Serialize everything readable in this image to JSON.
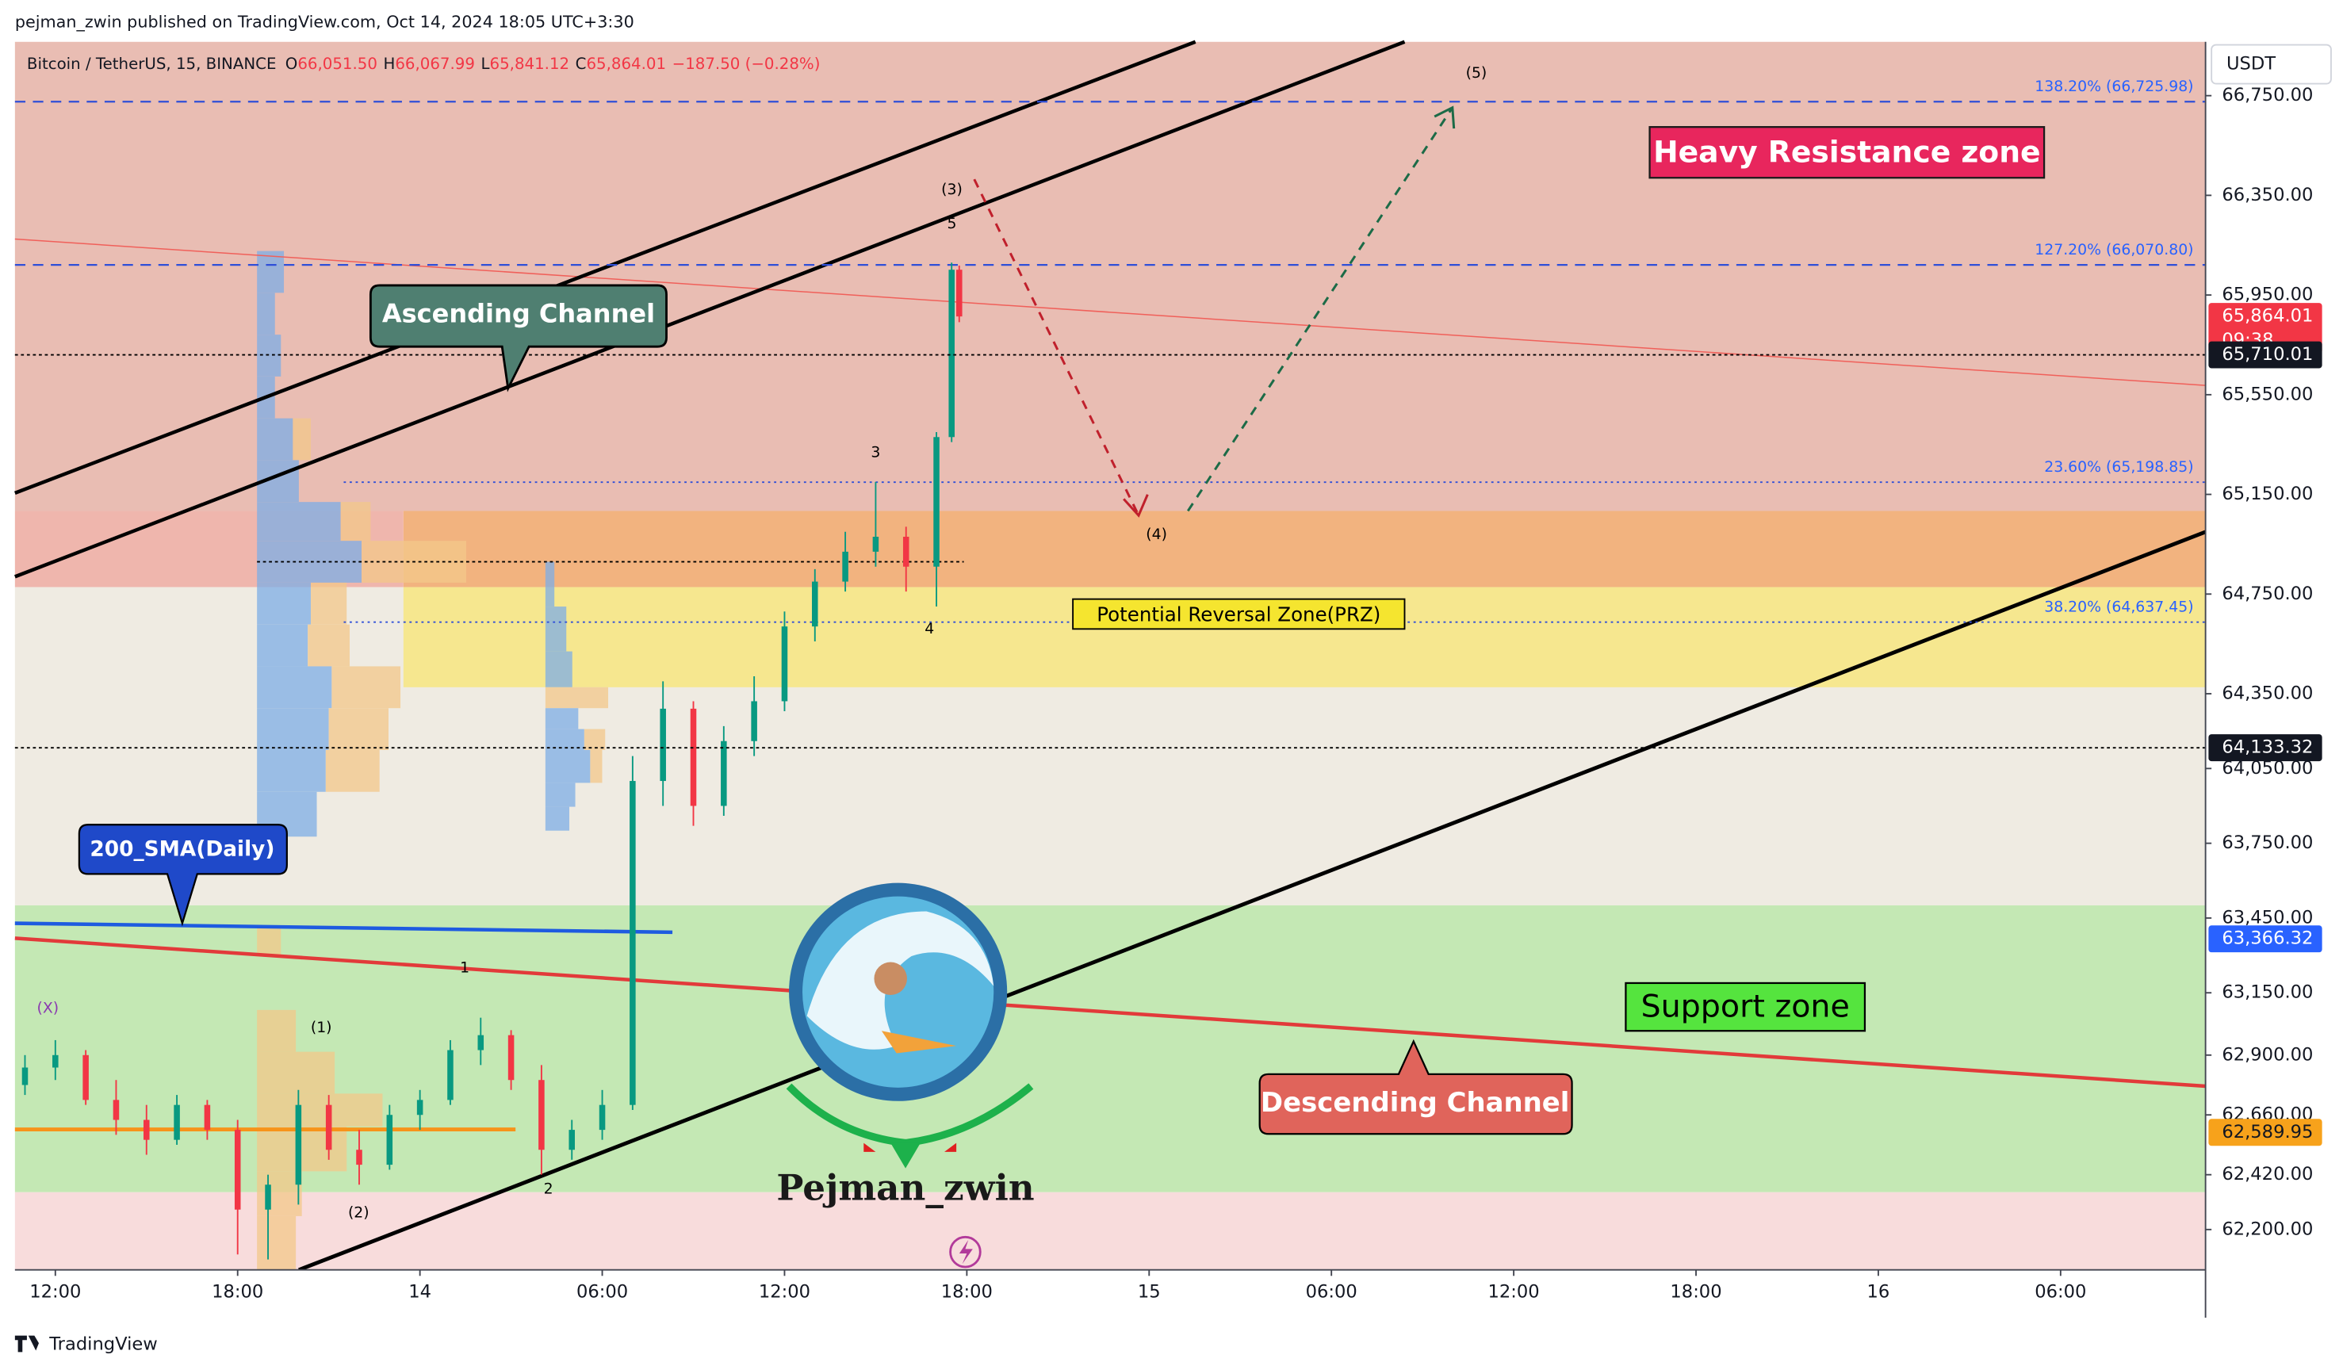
{
  "header": {
    "publisher": "pejman_zwin published on TradingView.com, Oct 14, 2024 18:05 UTC+3:30",
    "footer": "TradingView"
  },
  "chart_data": {
    "type": "candlestick",
    "title": "Bitcoin / TetherUS, 15, BINANCE",
    "ohlc_labels": [
      {
        "key": "O",
        "text": "66,051.50"
      },
      {
        "key": "H",
        "text": "66,067.99"
      },
      {
        "key": "L",
        "text": "65,841.12"
      },
      {
        "key": "C",
        "text": "65,864.01"
      }
    ],
    "change": "−187.50 (−0.28%)",
    "currency": "USDT",
    "x": [
      -1,
      0,
      1,
      2,
      3,
      4,
      5,
      6,
      7,
      8,
      9,
      10,
      11,
      12,
      13,
      14,
      15,
      16,
      17,
      18,
      19,
      20,
      21,
      22,
      23,
      24,
      25,
      26,
      27,
      28,
      29,
      29.5,
      29.75
    ],
    "open": [
      62780,
      62850,
      62900,
      62720,
      62640,
      62560,
      62700,
      62600,
      62280,
      62380,
      62700,
      62520,
      62460,
      62660,
      62720,
      62920,
      62980,
      62800,
      62520,
      62600,
      62700,
      64000,
      64290,
      63900,
      64160,
      64320,
      64620,
      64800,
      64920,
      64980,
      64860,
      65380,
      66051.5
    ],
    "high": [
      62900,
      62960,
      62920,
      62800,
      62700,
      62740,
      62720,
      62640,
      62420,
      62760,
      62740,
      62600,
      62700,
      62760,
      62960,
      63050,
      63000,
      62860,
      62640,
      62760,
      64100,
      64400,
      64320,
      64220,
      64420,
      64680,
      64850,
      65000,
      65200,
      65020,
      65400,
      66080,
      66067.99
    ],
    "low": [
      62740,
      62800,
      62700,
      62580,
      62500,
      62540,
      62560,
      62100,
      62080,
      62300,
      62480,
      62380,
      62440,
      62600,
      62700,
      62860,
      62760,
      62420,
      62480,
      62560,
      62680,
      63900,
      63820,
      63860,
      64100,
      64280,
      64560,
      64760,
      64860,
      64760,
      64700,
      65360,
      65841.12
    ],
    "close": [
      62850,
      62900,
      62720,
      62640,
      62560,
      62700,
      62600,
      62280,
      62380,
      62700,
      62520,
      62460,
      62660,
      62720,
      62920,
      62980,
      62800,
      62520,
      62600,
      62700,
      64000,
      64290,
      63900,
      64160,
      64320,
      64620,
      64800,
      64920,
      64980,
      64860,
      65380,
      66051.5,
      65864.01
    ],
    "up_color": "#089981",
    "down_color": "#f23645",
    "xlim": [
      -1.33,
      70.77
    ],
    "xticks": [
      {
        "value": 0,
        "label": "12:00"
      },
      {
        "value": 6,
        "label": "18:00"
      },
      {
        "value": 12,
        "label": "14"
      },
      {
        "value": 18,
        "label": "06:00"
      },
      {
        "value": 24,
        "label": "12:00"
      },
      {
        "value": 30,
        "label": "18:00"
      },
      {
        "value": 36,
        "label": "15"
      },
      {
        "value": 42,
        "label": "06:00"
      },
      {
        "value": 48,
        "label": "12:00"
      },
      {
        "value": 54,
        "label": "18:00"
      },
      {
        "value": 60,
        "label": "16"
      },
      {
        "value": 66,
        "label": "06:00"
      }
    ],
    "ylim": [
      62038,
      66966
    ],
    "yticks": [
      {
        "value": 66750,
        "label": "66,750.00"
      },
      {
        "value": 66350,
        "label": "66,350.00"
      },
      {
        "value": 65950,
        "label": "65,950.00"
      },
      {
        "value": 65550,
        "label": "65,550.00"
      },
      {
        "value": 65150,
        "label": "65,150.00"
      },
      {
        "value": 64750,
        "label": "64,750.00"
      },
      {
        "value": 64350,
        "label": "64,350.00"
      },
      {
        "value": 64050,
        "label": "64,050.00"
      },
      {
        "value": 63750,
        "label": "63,750.00"
      },
      {
        "value": 63450,
        "label": "63,450.00"
      },
      {
        "value": 63150,
        "label": "63,150.00"
      },
      {
        "value": 62900,
        "label": "62,900.00"
      },
      {
        "value": 62660,
        "label": "62,660.00"
      },
      {
        "value": 62420,
        "label": "62,420.00"
      },
      {
        "value": 62200,
        "label": "62,200.00"
      }
    ],
    "grid": false,
    "fib_levels": [
      {
        "value": 66725.98,
        "label": "138.20% (66,725.98)",
        "style": "dashed"
      },
      {
        "value": 66070.8,
        "label": "127.20% (66,070.80)",
        "style": "dashed"
      },
      {
        "value": 65198.85,
        "label": "23.60% (65,198.85)",
        "style": "dotted"
      },
      {
        "value": 64637.45,
        "label": "38.20% (64,637.45)",
        "style": "dotted"
      }
    ],
    "price_tags": [
      {
        "value": 65864.01,
        "label": "65,864.01",
        "sub": "09:38",
        "color": "#f23645"
      },
      {
        "value": 65710.01,
        "label": "65,710.01",
        "color": "#131722",
        "dotted": true
      },
      {
        "value": 64133.32,
        "label": "64,133.32",
        "color": "#131722",
        "dotted": true
      },
      {
        "value": 63366.32,
        "label": "63,366.32",
        "color": "#2962ff"
      },
      {
        "value": 62589.95,
        "label": "62,589.95",
        "color": "#f7a21b"
      }
    ],
    "annotations": {
      "ascending": "Ascending Channel",
      "resistance": "Heavy Resistance zone",
      "prz": "Potential Reversal Zone(PRZ)",
      "sma": "200_SMA(Daily)",
      "support": "Support zone",
      "descending": "Descending Channel",
      "logo": "Pejman_zwin"
    },
    "waves": [
      "(5)",
      "(3)",
      "5",
      "3",
      "4",
      "(4)",
      "1",
      "2",
      "(1)",
      "(2)",
      "(X)"
    ]
  }
}
